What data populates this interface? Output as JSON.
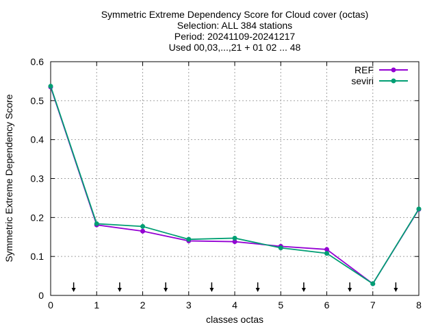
{
  "chart_data": {
    "type": "line",
    "title": [
      "Symmetric Extreme Dependency Score  for Cloud cover (octas)",
      "Selection: ALL    384 stations",
      "Period: 20241109-20241217",
      "Used 00,03,...,21 + 01 02 ... 48"
    ],
    "xlabel": "classes octas",
    "ylabel": "Symmetric Extreme Dependency Score",
    "xlim": [
      0,
      8
    ],
    "ylim": [
      0,
      0.6
    ],
    "xticks": [
      0,
      1,
      2,
      3,
      4,
      5,
      6,
      7,
      8
    ],
    "xtick_labels": [
      "0",
      "1",
      "2",
      "3",
      "4",
      "5",
      "6",
      "7",
      "8"
    ],
    "yticks": [
      0,
      0.1,
      0.2,
      0.3,
      0.4,
      0.5,
      0.6
    ],
    "ytick_labels": [
      "0",
      "0.1",
      "0.2",
      "0.3",
      "0.4",
      "0.5",
      "0.6"
    ],
    "grid": true,
    "legend_position": "top-right",
    "x": [
      0,
      1,
      2,
      3,
      4,
      5,
      6,
      7,
      8
    ],
    "series": [
      {
        "name": "REF",
        "color": "#9400d3",
        "values": [
          0.535,
          0.181,
          0.165,
          0.14,
          0.138,
          0.126,
          0.118,
          0.03,
          0.221
        ]
      },
      {
        "name": "seviri",
        "color": "#009e73",
        "values": [
          0.537,
          0.184,
          0.177,
          0.144,
          0.147,
          0.122,
          0.108,
          0.03,
          0.222
        ]
      }
    ],
    "arrow_markers_x": [
      0.5,
      1.5,
      2.5,
      3.5,
      4.5,
      5.5,
      6.5,
      7.5
    ]
  }
}
